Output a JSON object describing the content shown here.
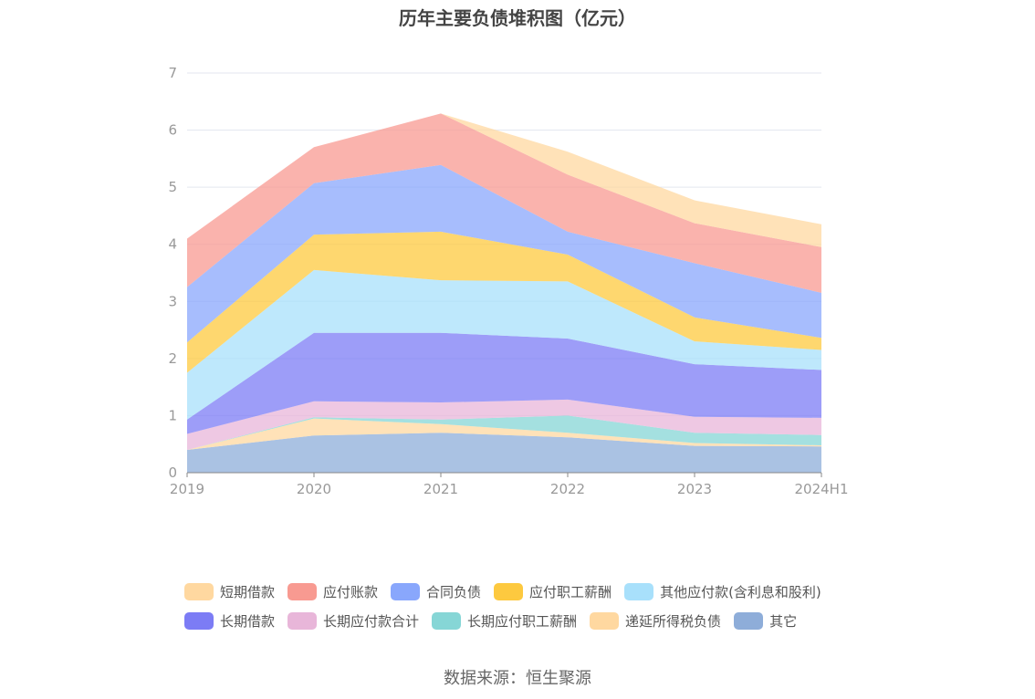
{
  "chart_data": {
    "type": "area",
    "title": "历年主要负债堆积图（亿元）",
    "x": [
      "2019",
      "2020",
      "2021",
      "2022",
      "2023",
      "2024H1"
    ],
    "ylim": [
      0,
      7
    ],
    "yticks": [
      "0",
      "1",
      "2",
      "3",
      "4",
      "5",
      "6",
      "7"
    ],
    "grid": true,
    "legend_position": "bottom",
    "stacked": true,
    "series": [
      {
        "name": "其它",
        "color": "#8eadd9",
        "values": [
          0.4,
          0.65,
          0.7,
          0.62,
          0.47,
          0.46
        ]
      },
      {
        "name": "递延所得税负债",
        "color": "#ffd8a0",
        "values": [
          0.0,
          0.3,
          0.15,
          0.08,
          0.05,
          0.02
        ]
      },
      {
        "name": "长期应付职工薪酬",
        "color": "#86d6d6",
        "values": [
          0.0,
          0.02,
          0.08,
          0.3,
          0.18,
          0.18
        ]
      },
      {
        "name": "长期应付款合计",
        "color": "#e8b6d9",
        "values": [
          0.28,
          0.28,
          0.3,
          0.28,
          0.28,
          0.3
        ]
      },
      {
        "name": "长期借款",
        "color": "#7c7cf5",
        "values": [
          0.25,
          1.2,
          1.22,
          1.07,
          0.92,
          0.84
        ]
      },
      {
        "name": "其他应付款(含利息和股利)",
        "color": "#a8e0fb",
        "values": [
          0.82,
          1.1,
          0.92,
          1.0,
          0.4,
          0.35
        ]
      },
      {
        "name": "应付职工薪酬",
        "color": "#fdc93f",
        "values": [
          0.53,
          0.62,
          0.85,
          0.47,
          0.42,
          0.21
        ]
      },
      {
        "name": "合同负债",
        "color": "#89a7fc",
        "values": [
          0.97,
          0.9,
          1.17,
          0.4,
          0.95,
          0.79
        ]
      },
      {
        "name": "应付账款",
        "color": "#f89a91",
        "values": [
          0.85,
          0.63,
          0.9,
          1.0,
          0.7,
          0.8
        ]
      },
      {
        "name": "短期借款",
        "color": "#ffd8a0",
        "values": [
          0.0,
          0.0,
          0.0,
          0.4,
          0.4,
          0.4
        ]
      }
    ]
  },
  "legend": {
    "row1": [
      {
        "label": "短期借款",
        "color": "#ffd8a0"
      },
      {
        "label": "应付账款",
        "color": "#f89a91"
      },
      {
        "label": "合同负债",
        "color": "#89a7fc"
      },
      {
        "label": "应付职工薪酬",
        "color": "#fdc93f"
      },
      {
        "label": "其他应付款(含利息和股利)",
        "color": "#a8e0fb"
      }
    ],
    "row2": [
      {
        "label": "长期借款",
        "color": "#7c7cf5"
      },
      {
        "label": "长期应付款合计",
        "color": "#e8b6d9"
      },
      {
        "label": "长期应付职工薪酬",
        "color": "#86d6d6"
      },
      {
        "label": "递延所得税负债",
        "color": "#ffd8a0"
      },
      {
        "label": "其它",
        "color": "#8eadd9"
      }
    ]
  },
  "source": "数据来源：恒生聚源"
}
